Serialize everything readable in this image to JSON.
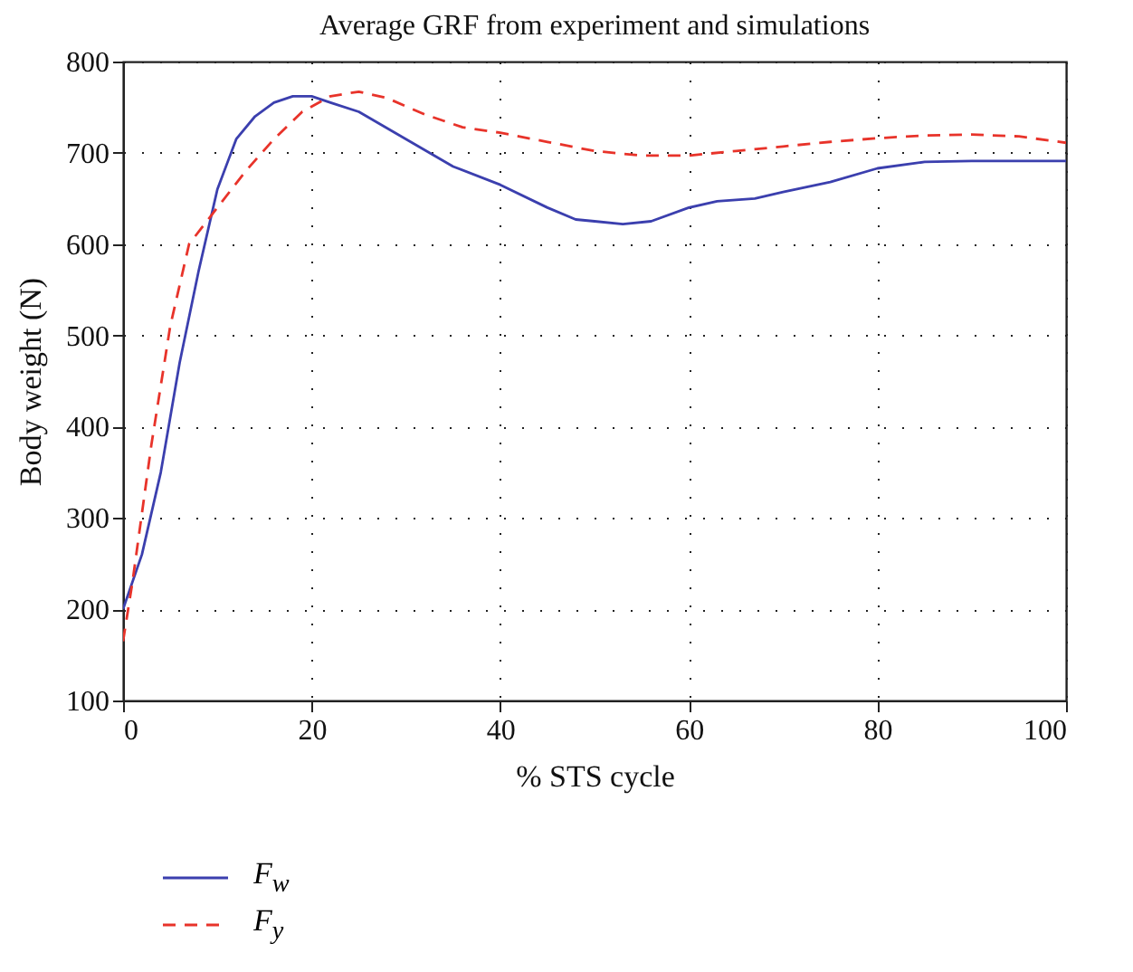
{
  "chart_data": {
    "type": "line",
    "title": "Average GRF from experiment and simulations",
    "xlabel": "% STS cycle",
    "ylabel": "Body weight (N)",
    "xlim": [
      0,
      100
    ],
    "xticks": [
      0,
      20,
      40,
      60,
      80,
      100
    ],
    "ylim": [
      100,
      800
    ],
    "yticks": [
      100,
      200,
      300,
      400,
      500,
      600,
      700,
      800
    ],
    "grid": true,
    "legend": "bottom left",
    "series": [
      {
        "name": "F$_{w}$",
        "color": "#3b3fae",
        "line_style": "solid",
        "x": [
          0,
          2,
          4,
          6,
          8,
          10,
          12,
          14,
          16,
          18,
          20,
          22,
          25,
          30,
          35,
          40,
          45,
          48,
          50,
          53,
          56,
          60,
          63,
          67,
          70,
          75,
          80,
          85,
          90,
          100
        ],
        "values": [
          200,
          260,
          350,
          470,
          570,
          660,
          715,
          740,
          755,
          762,
          762,
          755,
          745,
          715,
          685,
          665,
          640,
          627,
          625,
          622,
          625,
          640,
          647,
          650,
          657,
          668,
          683,
          690,
          691,
          691
        ]
      },
      {
        "name": "F$_{y}$",
        "color": "#e8332a",
        "line_style": "dashed",
        "x": [
          0,
          1,
          3,
          5,
          7,
          10,
          13,
          16,
          19,
          22,
          25,
          28,
          32,
          36,
          40,
          45,
          50,
          55,
          60,
          65,
          70,
          75,
          80,
          85,
          90,
          95,
          100
        ],
        "values": [
          165,
          230,
          380,
          510,
          600,
          640,
          680,
          715,
          745,
          762,
          767,
          760,
          742,
          728,
          722,
          712,
          702,
          697,
          697,
          702,
          707,
          712,
          716,
          719,
          720,
          718,
          711
        ]
      }
    ]
  }
}
